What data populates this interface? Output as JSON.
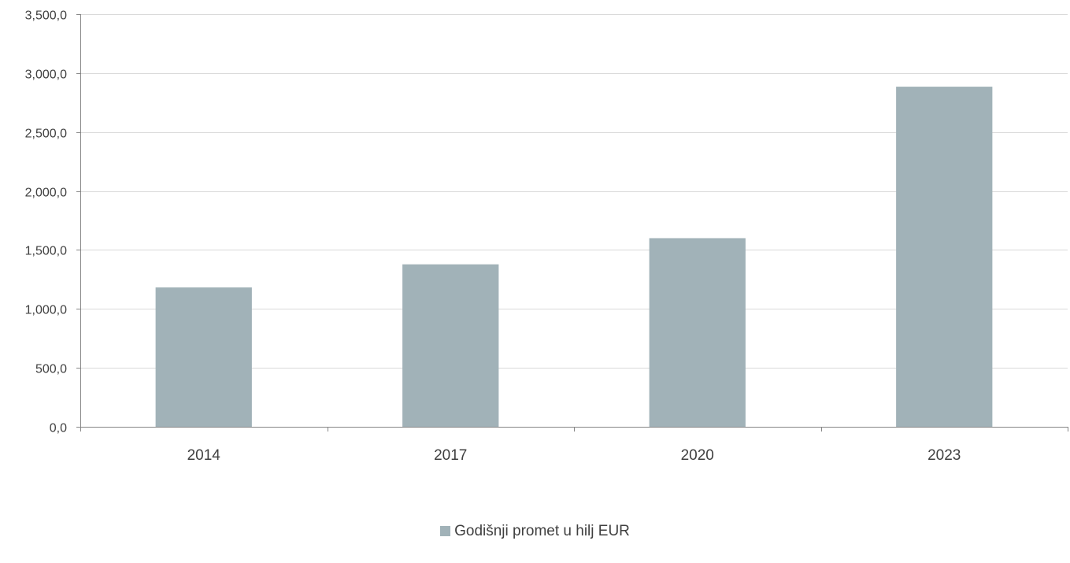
{
  "chart_data": {
    "type": "bar",
    "categories": [
      "2014",
      "2017",
      "2020",
      "2023"
    ],
    "series": [
      {
        "name": "Godišnji promet u hilj EUR",
        "values": [
          1182,
          1378,
          1600,
          2885
        ]
      }
    ],
    "ylim": [
      0,
      3500
    ],
    "yticks": [
      0,
      500,
      1000,
      1500,
      2000,
      2500,
      3000,
      3500
    ],
    "ytick_labels": [
      "0,0",
      "500,0",
      "1,000,0",
      "1,500,0",
      "2,000,0",
      "2,500,0",
      "3,000,0",
      "3,500,0"
    ],
    "grid": true,
    "legend_position": "bottom",
    "bar_color": "#a1b2b8",
    "grid_color": "#d9d9d9",
    "axis_color": "#868686"
  }
}
